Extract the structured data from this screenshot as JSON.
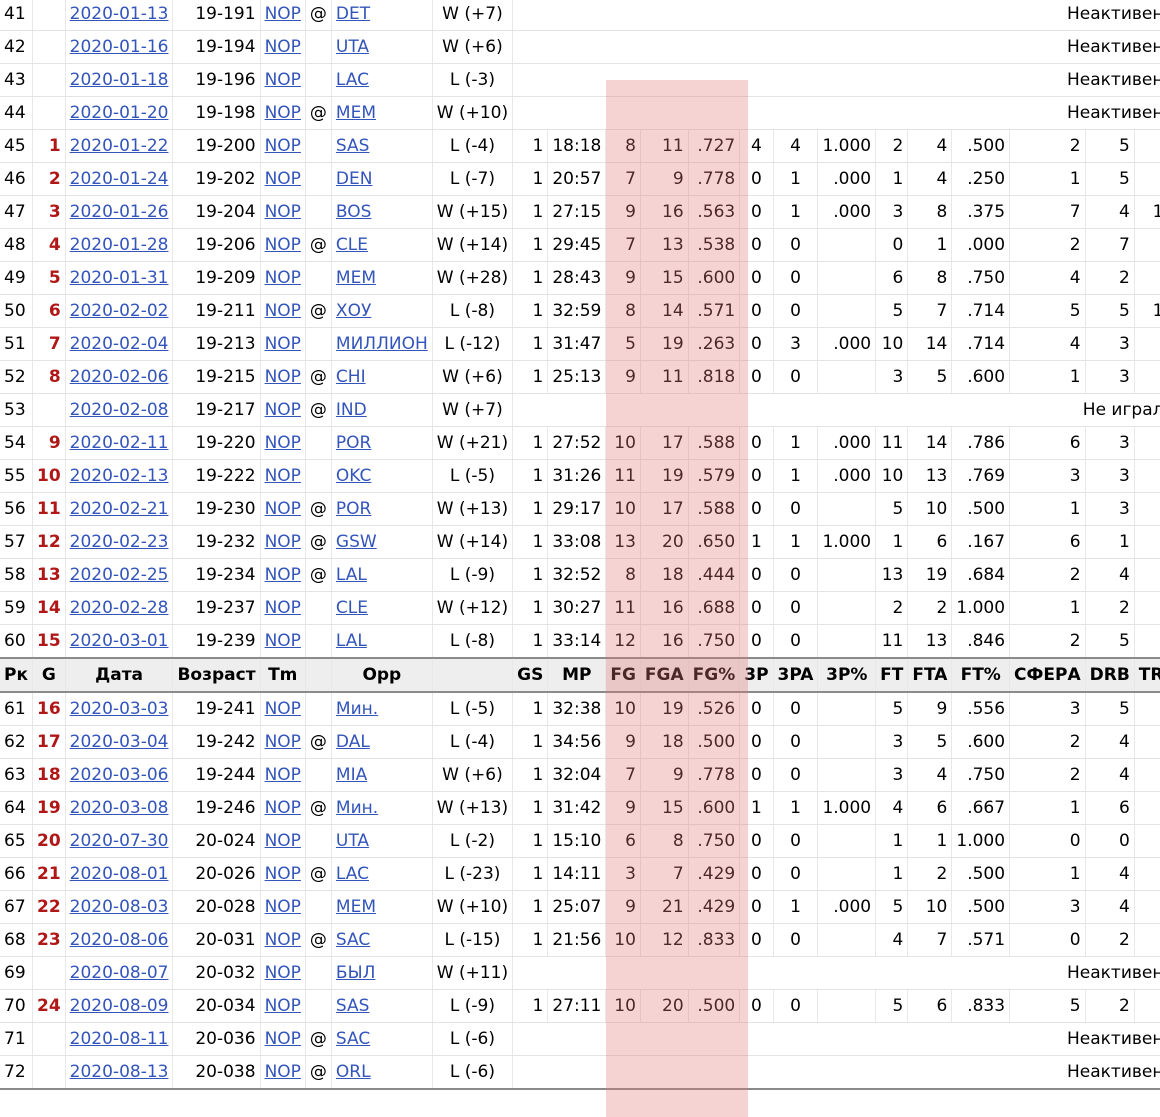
{
  "colors": {
    "link": "#3355bb",
    "game_number": "#b01818",
    "highlight": "rgba(228,120,120,0.33)"
  },
  "header": [
    "Рк",
    "G",
    "Дата",
    "Возраст",
    "Tm",
    "",
    "Opp",
    "",
    "GS",
    "MP",
    "FG",
    "FGA",
    "FG%",
    "3P",
    "3PA",
    "3P%",
    "FT",
    "FTA",
    "FT%",
    "СФЕРА",
    "DRB",
    "TR"
  ],
  "rows_top": [
    {
      "rk": "41",
      "g": "",
      "date": "2020-01-13",
      "age": "19-191",
      "tm": "NOP",
      "at": "@",
      "opp": "DET",
      "res": "W (+7)",
      "note": "Неактивен"
    },
    {
      "rk": "42",
      "g": "",
      "date": "2020-01-16",
      "age": "19-194",
      "tm": "NOP",
      "at": "",
      "opp": "UTA",
      "res": "W (+6)",
      "note": "Неактивен"
    },
    {
      "rk": "43",
      "g": "",
      "date": "2020-01-18",
      "age": "19-196",
      "tm": "NOP",
      "at": "",
      "opp": "LAC",
      "res": "L (-3)",
      "note": "Неактивен"
    },
    {
      "rk": "44",
      "g": "",
      "date": "2020-01-20",
      "age": "19-198",
      "tm": "NOP",
      "at": "@",
      "opp": "MEM",
      "res": "W (+10)",
      "note": "Неактивен"
    },
    {
      "rk": "45",
      "g": "1",
      "date": "2020-01-22",
      "age": "19-200",
      "tm": "NOP",
      "at": "",
      "opp": "SAS",
      "res": "L (-4)",
      "gs": "1",
      "mp": "18:18",
      "fg": "8",
      "fga": "11",
      "fgp": ".727",
      "tp": "4",
      "tpa": "4",
      "tpp": "1.000",
      "ft": "2",
      "fta": "4",
      "ftp": ".500",
      "orb": "2",
      "drb": "5",
      "tr": ""
    },
    {
      "rk": "46",
      "g": "2",
      "date": "2020-01-24",
      "age": "19-202",
      "tm": "NOP",
      "at": "",
      "opp": "DEN",
      "res": "L (-7)",
      "gs": "1",
      "mp": "20:57",
      "fg": "7",
      "fga": "9",
      "fgp": ".778",
      "tp": "0",
      "tpa": "1",
      "tpp": ".000",
      "ft": "1",
      "fta": "4",
      "ftp": ".250",
      "orb": "1",
      "drb": "5",
      "tr": ""
    },
    {
      "rk": "47",
      "g": "3",
      "date": "2020-01-26",
      "age": "19-204",
      "tm": "NOP",
      "at": "",
      "opp": "BOS",
      "res": "W (+15)",
      "gs": "1",
      "mp": "27:15",
      "fg": "9",
      "fga": "16",
      "fgp": ".563",
      "tp": "0",
      "tpa": "1",
      "tpp": ".000",
      "ft": "3",
      "fta": "8",
      "ftp": ".375",
      "orb": "7",
      "drb": "4",
      "tr": "1"
    },
    {
      "rk": "48",
      "g": "4",
      "date": "2020-01-28",
      "age": "19-206",
      "tm": "NOP",
      "at": "@",
      "opp": "CLE",
      "res": "W (+14)",
      "gs": "1",
      "mp": "29:45",
      "fg": "7",
      "fga": "13",
      "fgp": ".538",
      "tp": "0",
      "tpa": "0",
      "tpp": "",
      "ft": "0",
      "fta": "1",
      "ftp": ".000",
      "orb": "2",
      "drb": "7",
      "tr": ""
    },
    {
      "rk": "49",
      "g": "5",
      "date": "2020-01-31",
      "age": "19-209",
      "tm": "NOP",
      "at": "",
      "opp": "MEM",
      "res": "W (+28)",
      "gs": "1",
      "mp": "28:43",
      "fg": "9",
      "fga": "15",
      "fgp": ".600",
      "tp": "0",
      "tpa": "0",
      "tpp": "",
      "ft": "6",
      "fta": "8",
      "ftp": ".750",
      "orb": "4",
      "drb": "2",
      "tr": ""
    },
    {
      "rk": "50",
      "g": "6",
      "date": "2020-02-02",
      "age": "19-211",
      "tm": "NOP",
      "at": "@",
      "opp": "ХОУ",
      "res": "L (-8)",
      "gs": "1",
      "mp": "32:59",
      "fg": "8",
      "fga": "14",
      "fgp": ".571",
      "tp": "0",
      "tpa": "0",
      "tpp": "",
      "ft": "5",
      "fta": "7",
      "ftp": ".714",
      "orb": "5",
      "drb": "5",
      "tr": "1"
    },
    {
      "rk": "51",
      "g": "7",
      "date": "2020-02-04",
      "age": "19-213",
      "tm": "NOP",
      "at": "",
      "opp": "МИЛЛИОН",
      "res": "L (-12)",
      "gs": "1",
      "mp": "31:47",
      "fg": "5",
      "fga": "19",
      "fgp": ".263",
      "tp": "0",
      "tpa": "3",
      "tpp": ".000",
      "ft": "10",
      "fta": "14",
      "ftp": ".714",
      "orb": "4",
      "drb": "3",
      "tr": ""
    },
    {
      "rk": "52",
      "g": "8",
      "date": "2020-02-06",
      "age": "19-215",
      "tm": "NOP",
      "at": "@",
      "opp": "CHI",
      "res": "W (+6)",
      "gs": "1",
      "mp": "25:13",
      "fg": "9",
      "fga": "11",
      "fgp": ".818",
      "tp": "0",
      "tpa": "0",
      "tpp": "",
      "ft": "3",
      "fta": "5",
      "ftp": ".600",
      "orb": "1",
      "drb": "3",
      "tr": ""
    },
    {
      "rk": "53",
      "g": "",
      "date": "2020-02-08",
      "age": "19-217",
      "tm": "NOP",
      "at": "@",
      "opp": "IND",
      "res": "W (+7)",
      "note": "Не играл"
    },
    {
      "rk": "54",
      "g": "9",
      "date": "2020-02-11",
      "age": "19-220",
      "tm": "NOP",
      "at": "",
      "opp": "POR",
      "res": "W (+21)",
      "gs": "1",
      "mp": "27:52",
      "fg": "10",
      "fga": "17",
      "fgp": ".588",
      "tp": "0",
      "tpa": "1",
      "tpp": ".000",
      "ft": "11",
      "fta": "14",
      "ftp": ".786",
      "orb": "6",
      "drb": "3",
      "tr": ""
    },
    {
      "rk": "55",
      "g": "10",
      "date": "2020-02-13",
      "age": "19-222",
      "tm": "NOP",
      "at": "",
      "opp": "OKC",
      "res": "L (-5)",
      "gs": "1",
      "mp": "31:26",
      "fg": "11",
      "fga": "19",
      "fgp": ".579",
      "tp": "0",
      "tpa": "1",
      "tpp": ".000",
      "ft": "10",
      "fta": "13",
      "ftp": ".769",
      "orb": "3",
      "drb": "3",
      "tr": ""
    },
    {
      "rk": "56",
      "g": "11",
      "date": "2020-02-21",
      "age": "19-230",
      "tm": "NOP",
      "at": "@",
      "opp": "POR",
      "res": "W (+13)",
      "gs": "1",
      "mp": "29:17",
      "fg": "10",
      "fga": "17",
      "fgp": ".588",
      "tp": "0",
      "tpa": "0",
      "tpp": "",
      "ft": "5",
      "fta": "10",
      "ftp": ".500",
      "orb": "1",
      "drb": "3",
      "tr": ""
    },
    {
      "rk": "57",
      "g": "12",
      "date": "2020-02-23",
      "age": "19-232",
      "tm": "NOP",
      "at": "@",
      "opp": "GSW",
      "res": "W (+14)",
      "gs": "1",
      "mp": "33:08",
      "fg": "13",
      "fga": "20",
      "fgp": ".650",
      "tp": "1",
      "tpa": "1",
      "tpp": "1.000",
      "ft": "1",
      "fta": "6",
      "ftp": ".167",
      "orb": "6",
      "drb": "1",
      "tr": ""
    },
    {
      "rk": "58",
      "g": "13",
      "date": "2020-02-25",
      "age": "19-234",
      "tm": "NOP",
      "at": "@",
      "opp": "LAL",
      "res": "L (-9)",
      "gs": "1",
      "mp": "32:52",
      "fg": "8",
      "fga": "18",
      "fgp": ".444",
      "tp": "0",
      "tpa": "0",
      "tpp": "",
      "ft": "13",
      "fta": "19",
      "ftp": ".684",
      "orb": "2",
      "drb": "4",
      "tr": ""
    },
    {
      "rk": "59",
      "g": "14",
      "date": "2020-02-28",
      "age": "19-237",
      "tm": "NOP",
      "at": "",
      "opp": "CLE",
      "res": "W (+12)",
      "gs": "1",
      "mp": "30:27",
      "fg": "11",
      "fga": "16",
      "fgp": ".688",
      "tp": "0",
      "tpa": "0",
      "tpp": "",
      "ft": "2",
      "fta": "2",
      "ftp": "1.000",
      "orb": "1",
      "drb": "2",
      "tr": ""
    },
    {
      "rk": "60",
      "g": "15",
      "date": "2020-03-01",
      "age": "19-239",
      "tm": "NOP",
      "at": "",
      "opp": "LAL",
      "res": "L (-8)",
      "gs": "1",
      "mp": "33:14",
      "fg": "12",
      "fga": "16",
      "fgp": ".750",
      "tp": "0",
      "tpa": "0",
      "tpp": "",
      "ft": "11",
      "fta": "13",
      "ftp": ".846",
      "orb": "2",
      "drb": "5",
      "tr": ""
    }
  ],
  "rows_bottom": [
    {
      "rk": "61",
      "g": "16",
      "date": "2020-03-03",
      "age": "19-241",
      "tm": "NOP",
      "at": "",
      "opp": "Мин.",
      "res": "L (-5)",
      "gs": "1",
      "mp": "32:38",
      "fg": "10",
      "fga": "19",
      "fgp": ".526",
      "tp": "0",
      "tpa": "0",
      "tpp": "",
      "ft": "5",
      "fta": "9",
      "ftp": ".556",
      "orb": "3",
      "drb": "5",
      "tr": ""
    },
    {
      "rk": "62",
      "g": "17",
      "date": "2020-03-04",
      "age": "19-242",
      "tm": "NOP",
      "at": "@",
      "opp": "DAL",
      "res": "L (-4)",
      "gs": "1",
      "mp": "34:56",
      "fg": "9",
      "fga": "18",
      "fgp": ".500",
      "tp": "0",
      "tpa": "0",
      "tpp": "",
      "ft": "3",
      "fta": "5",
      "ftp": ".600",
      "orb": "2",
      "drb": "4",
      "tr": ""
    },
    {
      "rk": "63",
      "g": "18",
      "date": "2020-03-06",
      "age": "19-244",
      "tm": "NOP",
      "at": "",
      "opp": "MIA",
      "res": "W (+6)",
      "gs": "1",
      "mp": "32:04",
      "fg": "7",
      "fga": "9",
      "fgp": ".778",
      "tp": "0",
      "tpa": "0",
      "tpp": "",
      "ft": "3",
      "fta": "4",
      "ftp": ".750",
      "orb": "2",
      "drb": "4",
      "tr": ""
    },
    {
      "rk": "64",
      "g": "19",
      "date": "2020-03-08",
      "age": "19-246",
      "tm": "NOP",
      "at": "@",
      "opp": "Мин.",
      "res": "W (+13)",
      "gs": "1",
      "mp": "31:42",
      "fg": "9",
      "fga": "15",
      "fgp": ".600",
      "tp": "1",
      "tpa": "1",
      "tpp": "1.000",
      "ft": "4",
      "fta": "6",
      "ftp": ".667",
      "orb": "1",
      "drb": "6",
      "tr": ""
    },
    {
      "rk": "65",
      "g": "20",
      "date": "2020-07-30",
      "age": "20-024",
      "tm": "NOP",
      "at": "",
      "opp": "UTA",
      "res": "L (-2)",
      "gs": "1",
      "mp": "15:10",
      "fg": "6",
      "fga": "8",
      "fgp": ".750",
      "tp": "0",
      "tpa": "0",
      "tpp": "",
      "ft": "1",
      "fta": "1",
      "ftp": "1.000",
      "orb": "0",
      "drb": "0",
      "tr": ""
    },
    {
      "rk": "66",
      "g": "21",
      "date": "2020-08-01",
      "age": "20-026",
      "tm": "NOP",
      "at": "@",
      "opp": "LAC",
      "res": "L (-23)",
      "gs": "1",
      "mp": "14:11",
      "fg": "3",
      "fga": "7",
      "fgp": ".429",
      "tp": "0",
      "tpa": "0",
      "tpp": "",
      "ft": "1",
      "fta": "2",
      "ftp": ".500",
      "orb": "1",
      "drb": "4",
      "tr": ""
    },
    {
      "rk": "67",
      "g": "22",
      "date": "2020-08-03",
      "age": "20-028",
      "tm": "NOP",
      "at": "",
      "opp": "MEM",
      "res": "W (+10)",
      "gs": "1",
      "mp": "25:07",
      "fg": "9",
      "fga": "21",
      "fgp": ".429",
      "tp": "0",
      "tpa": "1",
      "tpp": ".000",
      "ft": "5",
      "fta": "10",
      "ftp": ".500",
      "orb": "3",
      "drb": "4",
      "tr": ""
    },
    {
      "rk": "68",
      "g": "23",
      "date": "2020-08-06",
      "age": "20-031",
      "tm": "NOP",
      "at": "@",
      "opp": "SAC",
      "res": "L (-15)",
      "gs": "1",
      "mp": "21:56",
      "fg": "10",
      "fga": "12",
      "fgp": ".833",
      "tp": "0",
      "tpa": "0",
      "tpp": "",
      "ft": "4",
      "fta": "7",
      "ftp": ".571",
      "orb": "0",
      "drb": "2",
      "tr": ""
    },
    {
      "rk": "69",
      "g": "",
      "date": "2020-08-07",
      "age": "20-032",
      "tm": "NOP",
      "at": "",
      "opp": "БЫЛ",
      "res": "W (+11)",
      "note": "Неактивен"
    },
    {
      "rk": "70",
      "g": "24",
      "date": "2020-08-09",
      "age": "20-034",
      "tm": "NOP",
      "at": "",
      "opp": "SAS",
      "res": "L (-9)",
      "gs": "1",
      "mp": "27:11",
      "fg": "10",
      "fga": "20",
      "fgp": ".500",
      "tp": "0",
      "tpa": "0",
      "tpp": "",
      "ft": "5",
      "fta": "6",
      "ftp": ".833",
      "orb": "5",
      "drb": "2",
      "tr": ""
    },
    {
      "rk": "71",
      "g": "",
      "date": "2020-08-11",
      "age": "20-036",
      "tm": "NOP",
      "at": "@",
      "opp": "SAC",
      "res": "L (-6)",
      "note": "Неактивен"
    },
    {
      "rk": "72",
      "g": "",
      "date": "2020-08-13",
      "age": "20-038",
      "tm": "NOP",
      "at": "@",
      "opp": "ORL",
      "res": "L (-6)",
      "note": "Неактивен"
    }
  ]
}
